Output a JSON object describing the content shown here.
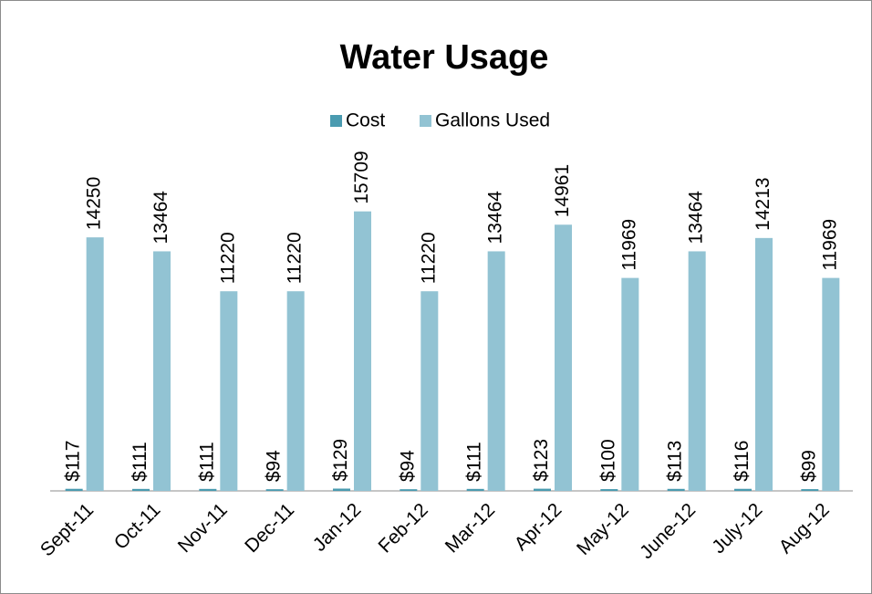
{
  "chart_data": {
    "type": "bar",
    "title": "Water Usage",
    "categories": [
      "Sept-11",
      "Oct-11",
      "Nov-11",
      "Dec-11",
      "Jan-12",
      "Feb-12",
      "Mar-12",
      "Apr-12",
      "May-12",
      "June-12",
      "July-12",
      "Aug-12"
    ],
    "series": [
      {
        "name": "Cost",
        "color": "#4a9bb0",
        "values": [
          117,
          111,
          111,
          94,
          129,
          94,
          111,
          123,
          100,
          113,
          116,
          99
        ],
        "value_labels": [
          "$117",
          "$111",
          "$111",
          "$94",
          "$129",
          "$94",
          "$111",
          "$123",
          "$100",
          "$113",
          "$116",
          "$99"
        ]
      },
      {
        "name": "Gallons Used",
        "color": "#92c3d3",
        "values": [
          14250,
          13464,
          11220,
          11220,
          15709,
          11220,
          13464,
          14961,
          11969,
          13464,
          14213,
          11969
        ]
      }
    ],
    "ylim": [
      0,
      18000
    ],
    "legend": "top"
  }
}
